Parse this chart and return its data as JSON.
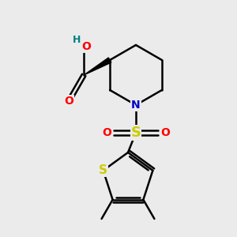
{
  "bg_color": "#ebebeb",
  "bond_color": "#000000",
  "bond_width": 1.8,
  "atom_colors": {
    "N": "#0000cc",
    "O": "#ff0000",
    "S_sulfonyl": "#cccc00",
    "S_thio": "#cccc00",
    "C": "#000000",
    "H": "#008080"
  },
  "font_size_atom": 10,
  "font_size_h": 9,
  "font_size_methyl": 9
}
